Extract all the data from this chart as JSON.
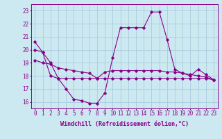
{
  "xlabel": "Windchill (Refroidissement éolien,°C)",
  "background_color": "#cce8f0",
  "grid_color": "#aaccdd",
  "line_color": "#880088",
  "x_values": [
    0,
    1,
    2,
    3,
    4,
    5,
    6,
    7,
    8,
    9,
    10,
    11,
    12,
    13,
    14,
    15,
    16,
    17,
    18,
    19,
    20,
    21,
    22,
    23
  ],
  "line1": [
    20.6,
    19.8,
    19.0,
    17.8,
    17.0,
    16.2,
    16.1,
    15.9,
    15.9,
    16.7,
    19.4,
    21.7,
    21.7,
    21.7,
    21.7,
    22.9,
    22.9,
    20.8,
    18.5,
    18.2,
    18.0,
    18.5,
    18.1,
    17.7
  ],
  "line2": [
    19.2,
    19.0,
    18.9,
    18.6,
    18.5,
    18.4,
    18.3,
    18.2,
    17.8,
    18.3,
    18.4,
    18.4,
    18.4,
    18.4,
    18.4,
    18.4,
    18.4,
    18.3,
    18.3,
    18.2,
    18.1,
    18.0,
    17.9,
    17.7
  ],
  "line3": [
    20.0,
    19.8,
    18.0,
    17.8,
    17.8,
    17.8,
    17.8,
    17.8,
    17.8,
    17.8,
    17.8,
    17.8,
    17.8,
    17.8,
    17.8,
    17.8,
    17.8,
    17.8,
    17.8,
    17.8,
    17.8,
    17.8,
    17.8,
    17.7
  ],
  "ylim": [
    15.5,
    23.5
  ],
  "yticks": [
    16,
    17,
    18,
    19,
    20,
    21,
    22,
    23
  ],
  "xticks": [
    0,
    1,
    2,
    3,
    4,
    5,
    6,
    7,
    8,
    9,
    10,
    11,
    12,
    13,
    14,
    15,
    16,
    17,
    18,
    19,
    20,
    21,
    22,
    23
  ],
  "marker": "D",
  "marker_size": 1.8,
  "linewidth": 0.8,
  "xlabel_fontsize": 6.0,
  "tick_fontsize": 5.5
}
